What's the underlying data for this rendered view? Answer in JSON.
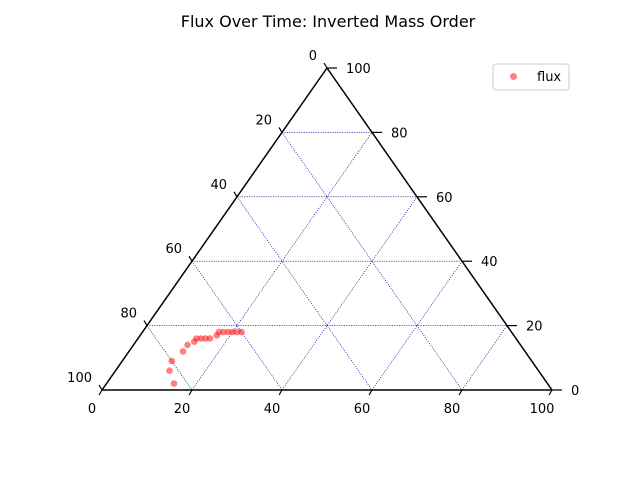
{
  "chart_data": {
    "type": "scatter",
    "subtype": "ternary",
    "title": "Flux Over Time: Inverted Mass Order",
    "axes": {
      "bottom": {
        "label": "",
        "ticks": [
          "0",
          "20",
          "40",
          "60",
          "80",
          "100"
        ]
      },
      "left": {
        "label": "",
        "ticks": [
          "0",
          "20",
          "40",
          "60",
          "80",
          "100"
        ]
      },
      "right": {
        "label": "",
        "ticks": [
          "0",
          "20",
          "40",
          "60",
          "80",
          "100"
        ]
      }
    },
    "range": [
      0,
      100
    ],
    "grid": true,
    "grid_step": 20,
    "grid_color": "#00008b",
    "frame_color": "#000000",
    "legend": {
      "position": "top-right",
      "entries": [
        "flux"
      ]
    },
    "series": [
      {
        "name": "flux",
        "color": "#ff0000",
        "alpha": 0.5,
        "points": [
          {
            "a": 15,
            "b": 2,
            "c": 83
          },
          {
            "a": 12,
            "b": 6,
            "c": 82
          },
          {
            "a": 11,
            "b": 9,
            "c": 80
          },
          {
            "a": 12,
            "b": 12,
            "c": 76
          },
          {
            "a": 12,
            "b": 14,
            "c": 74
          },
          {
            "a": 13,
            "b": 15,
            "c": 72
          },
          {
            "a": 13,
            "b": 16,
            "c": 71
          },
          {
            "a": 14,
            "b": 16,
            "c": 70
          },
          {
            "a": 15,
            "b": 16,
            "c": 69
          },
          {
            "a": 16,
            "b": 16,
            "c": 68
          },
          {
            "a": 17,
            "b": 17,
            "c": 66
          },
          {
            "a": 17,
            "b": 18,
            "c": 65
          },
          {
            "a": 18,
            "b": 18,
            "c": 64
          },
          {
            "a": 19,
            "b": 18,
            "c": 63
          },
          {
            "a": 20,
            "b": 18,
            "c": 62
          },
          {
            "a": 21,
            "b": 18,
            "c": 61
          },
          {
            "a": 22,
            "b": 18,
            "c": 60
          }
        ]
      }
    ]
  }
}
